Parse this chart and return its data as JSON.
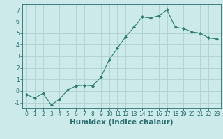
{
  "x": [
    0,
    1,
    2,
    3,
    4,
    5,
    6,
    7,
    8,
    9,
    10,
    11,
    12,
    13,
    14,
    15,
    16,
    17,
    18,
    19,
    20,
    21,
    22,
    23
  ],
  "y": [
    -0.3,
    -0.6,
    -0.2,
    -1.2,
    -0.7,
    0.1,
    0.45,
    0.5,
    0.45,
    1.2,
    2.7,
    3.7,
    4.7,
    5.5,
    6.4,
    6.3,
    6.5,
    7.0,
    5.5,
    5.4,
    5.1,
    5.0,
    4.6,
    4.5
  ],
  "line_color": "#2e7d6e",
  "marker": "D",
  "marker_size": 2.0,
  "bg_color": "#cceaea",
  "grid_color": "#b0d0d0",
  "axis_color": "#2e6e6e",
  "xlabel": "Humidex (Indice chaleur)",
  "xlim": [
    -0.5,
    23.5
  ],
  "ylim": [
    -1.5,
    7.5
  ],
  "yticks": [
    -1,
    0,
    1,
    2,
    3,
    4,
    5,
    6,
    7
  ],
  "xticks": [
    0,
    1,
    2,
    3,
    4,
    5,
    6,
    7,
    8,
    9,
    10,
    11,
    12,
    13,
    14,
    15,
    16,
    17,
    18,
    19,
    20,
    21,
    22,
    23
  ],
  "tick_fontsize": 5.5,
  "label_fontsize": 7.5
}
